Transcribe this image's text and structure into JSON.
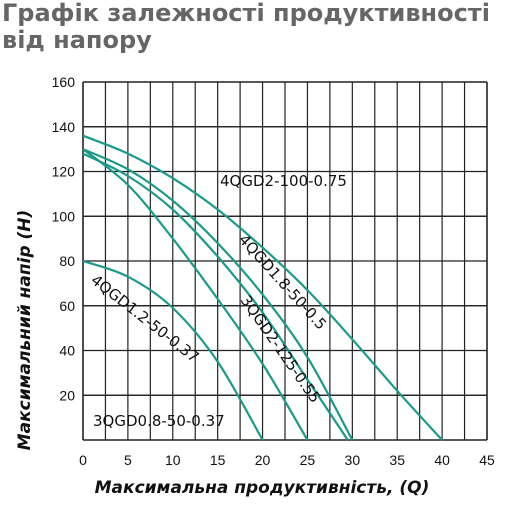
{
  "chart_data": {
    "type": "line",
    "title": "Графік залежності продуктивності від напору",
    "xlabel": "Максимальна продуктивність, (Q)",
    "ylabel": "Максимальний напір (H)",
    "xlim": [
      0,
      45
    ],
    "ylim": [
      0,
      160
    ],
    "xticks": [
      0,
      5,
      10,
      15,
      20,
      25,
      30,
      35,
      40,
      45
    ],
    "yticks": [
      20,
      40,
      60,
      80,
      100,
      120,
      140,
      160
    ],
    "grid": true,
    "line_color": "#1a9a8a",
    "series": [
      {
        "name": "4QGD2-100-0.75",
        "x": [
          0,
          5,
          10,
          15,
          20,
          25,
          30,
          35,
          40
        ],
        "y": [
          136,
          128,
          117,
          103,
          86,
          67,
          45,
          22,
          0
        ]
      },
      {
        "name": "4QGD1.8-50-0.5",
        "x": [
          0,
          5,
          10,
          15,
          20,
          25,
          30
        ],
        "y": [
          130,
          121,
          107,
          88,
          65,
          37,
          0
        ]
      },
      {
        "name": "3QGD2-125-0.55",
        "x": [
          0,
          5,
          10,
          15,
          20,
          25,
          29.5
        ],
        "y": [
          128,
          118,
          103,
          82,
          57,
          27,
          0
        ]
      },
      {
        "name": "4QGD1.2-50-0.37",
        "x": [
          0,
          5,
          10,
          15,
          20,
          25
        ],
        "y": [
          130,
          114,
          90,
          63,
          34,
          0
        ]
      },
      {
        "name": "3QGD0.8-50-0.37",
        "x": [
          0,
          5,
          10,
          15,
          20
        ],
        "y": [
          80,
          73,
          59,
          35,
          0
        ]
      }
    ]
  }
}
